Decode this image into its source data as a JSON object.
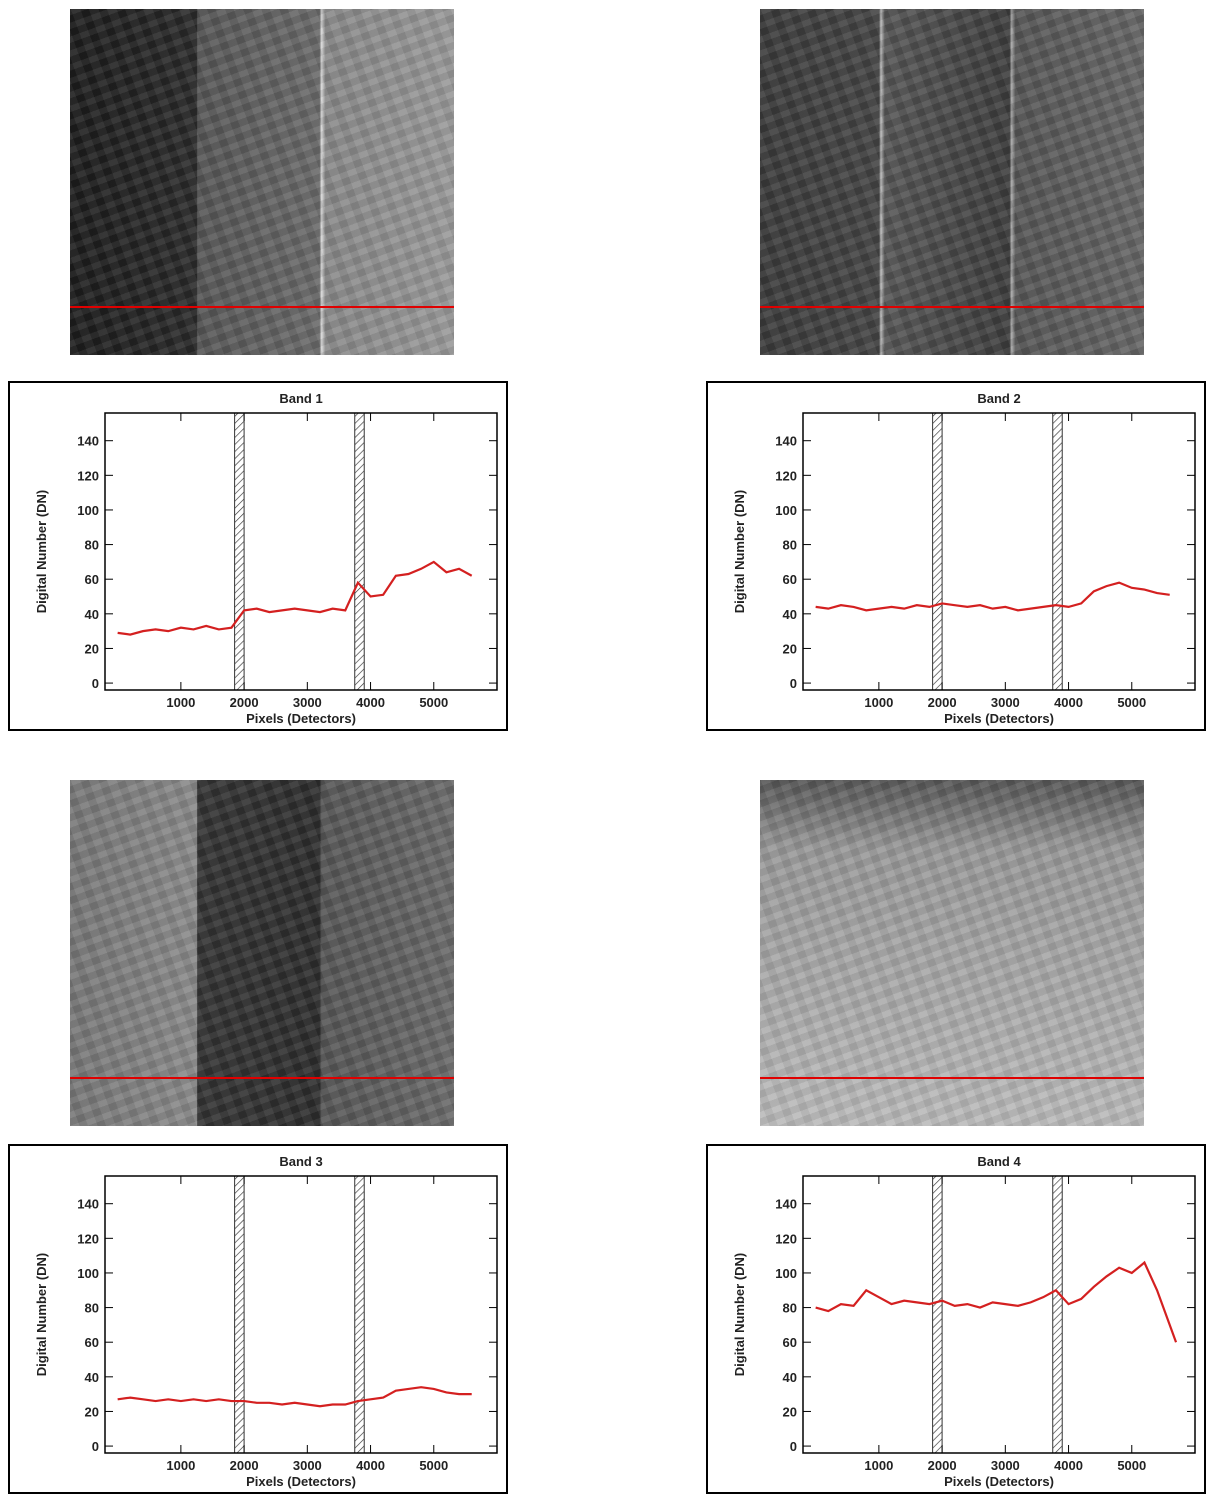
{
  "chart_data": [
    {
      "type": "line",
      "title": "Band 1",
      "x_label": "Pixels (Detectors)",
      "y_label": "Digital Number (DN)",
      "xlim": [
        -200,
        6000
      ],
      "ylim": [
        -4,
        156
      ],
      "xticks": [
        1000,
        2000,
        3000,
        4000,
        5000
      ],
      "yticks": [
        0,
        20,
        40,
        60,
        80,
        100,
        120,
        140
      ],
      "shaded_regions": [
        [
          1850,
          2000
        ],
        [
          3750,
          3900
        ]
      ],
      "x": [
        0,
        200,
        400,
        600,
        800,
        1000,
        1200,
        1400,
        1600,
        1800,
        2000,
        2200,
        2400,
        2600,
        2800,
        3000,
        3200,
        3400,
        3600,
        3800,
        4000,
        4200,
        4400,
        4600,
        4800,
        5000,
        5200,
        5400,
        5600
      ],
      "series": [
        {
          "color": "#d42020",
          "values": [
            29,
            28,
            30,
            31,
            30,
            32,
            31,
            33,
            31,
            32,
            42,
            43,
            41,
            42,
            43,
            42,
            41,
            43,
            42,
            58,
            50,
            51,
            62,
            63,
            66,
            70,
            64,
            66,
            62
          ]
        }
      ]
    },
    {
      "type": "line",
      "title": "Band 2",
      "x_label": "Pixels (Detectors)",
      "y_label": "Digital Number (DN)",
      "xlim": [
        -200,
        6000
      ],
      "ylim": [
        -4,
        156
      ],
      "xticks": [
        1000,
        2000,
        3000,
        4000,
        5000
      ],
      "yticks": [
        0,
        20,
        40,
        60,
        80,
        100,
        120,
        140
      ],
      "shaded_regions": [
        [
          1850,
          2000
        ],
        [
          3750,
          3900
        ]
      ],
      "x": [
        0,
        200,
        400,
        600,
        800,
        1000,
        1200,
        1400,
        1600,
        1800,
        2000,
        2200,
        2400,
        2600,
        2800,
        3000,
        3200,
        3400,
        3600,
        3800,
        4000,
        4200,
        4400,
        4600,
        4800,
        5000,
        5200,
        5400,
        5600
      ],
      "series": [
        {
          "color": "#d42020",
          "values": [
            44,
            43,
            45,
            44,
            42,
            43,
            44,
            43,
            45,
            44,
            46,
            45,
            44,
            45,
            43,
            44,
            42,
            43,
            44,
            45,
            44,
            46,
            53,
            56,
            58,
            55,
            54,
            52,
            51
          ]
        }
      ]
    },
    {
      "type": "line",
      "title": "Band 3",
      "x_label": "Pixels (Detectors)",
      "y_label": "Digital Number (DN)",
      "xlim": [
        -200,
        6000
      ],
      "ylim": [
        -4,
        156
      ],
      "xticks": [
        1000,
        2000,
        3000,
        4000,
        5000
      ],
      "yticks": [
        0,
        20,
        40,
        60,
        80,
        100,
        120,
        140
      ],
      "shaded_regions": [
        [
          1850,
          2000
        ],
        [
          3750,
          3900
        ]
      ],
      "x": [
        0,
        200,
        400,
        600,
        800,
        1000,
        1200,
        1400,
        1600,
        1800,
        2000,
        2200,
        2400,
        2600,
        2800,
        3000,
        3200,
        3400,
        3600,
        3800,
        4000,
        4200,
        4400,
        4600,
        4800,
        5000,
        5200,
        5400,
        5600
      ],
      "series": [
        {
          "color": "#d42020",
          "values": [
            27,
            28,
            27,
            26,
            27,
            26,
            27,
            26,
            27,
            26,
            26,
            25,
            25,
            24,
            25,
            24,
            23,
            24,
            24,
            26,
            27,
            28,
            32,
            33,
            34,
            33,
            31,
            30,
            30
          ]
        }
      ]
    },
    {
      "type": "line",
      "title": "Band 4",
      "x_label": "Pixels (Detectors)",
      "y_label": "Digital Number (DN)",
      "xlim": [
        -200,
        6000
      ],
      "ylim": [
        -4,
        156
      ],
      "xticks": [
        1000,
        2000,
        3000,
        4000,
        5000
      ],
      "yticks": [
        0,
        20,
        40,
        60,
        80,
        100,
        120,
        140
      ],
      "shaded_regions": [
        [
          1850,
          2000
        ],
        [
          3750,
          3900
        ]
      ],
      "x": [
        0,
        200,
        400,
        600,
        800,
        1000,
        1200,
        1400,
        1600,
        1800,
        2000,
        2200,
        2400,
        2600,
        2800,
        3000,
        3200,
        3400,
        3600,
        3800,
        4000,
        4200,
        4400,
        4600,
        4800,
        5000,
        5200,
        5400,
        5600,
        5700
      ],
      "series": [
        {
          "color": "#d42020",
          "values": [
            80,
            78,
            82,
            81,
            90,
            86,
            82,
            84,
            83,
            82,
            84,
            81,
            82,
            80,
            83,
            82,
            81,
            83,
            86,
            90,
            82,
            85,
            92,
            98,
            103,
            100,
            106,
            90,
            70,
            60
          ]
        }
      ]
    }
  ]
}
